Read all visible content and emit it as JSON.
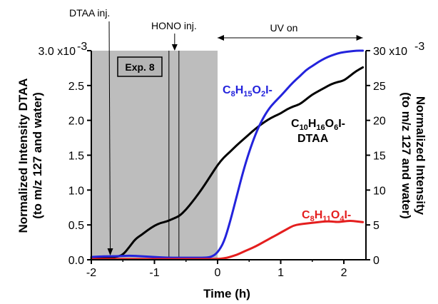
{
  "chart_data": {
    "type": "line",
    "title": "",
    "xlabel": "Time (h)",
    "xlim": [
      -2,
      2.35
    ],
    "x_ticks": [
      "-2",
      "-1",
      "0",
      "1",
      "2"
    ],
    "ylabel_left_line1": "Normalized Intensity DTAA",
    "ylabel_left_line2": "(to m/z 127 and water)",
    "ylim_left": [
      0,
      0.003
    ],
    "y_ticks_left": [
      "0.0",
      "0.5",
      "1.0",
      "1.5",
      "2.0",
      "2.5",
      "3.0 x10"
    ],
    "y_ticks_left_exponent": "-3",
    "ylabel_right_line1": "Normalized Intensity",
    "ylabel_right_line2": "(to m/z 127 and water)",
    "ylim_right": [
      0,
      30
    ],
    "y_ticks_right": [
      "0",
      "5",
      "10",
      "15",
      "20",
      "25",
      "30 x10"
    ],
    "y_ticks_right_exponent": "-3",
    "shaded_region": [
      -2,
      0
    ],
    "box_label": "Exp. 8",
    "annotations": {
      "dtaa_inj": {
        "text": "DTAA inj.",
        "x": -1.7
      },
      "hono_inj": {
        "text": "HONO inj.",
        "x": -0.68
      },
      "uv_on": {
        "text": "UV on",
        "x_start": 0,
        "x_end": 2.3
      }
    },
    "series": [
      {
        "name": "C10H16O6I- DTAA",
        "label_main": "C",
        "label_sub1": "10",
        "label_h": "H",
        "label_sub2": "16",
        "label_o": "O",
        "label_sub3": "6",
        "label_end": "I-",
        "label_line2": "DTAA",
        "axis": "left",
        "color": "#000000",
        "x": [
          -2.0,
          -1.8,
          -1.6,
          -1.5,
          -1.4,
          -1.3,
          -1.2,
          -1.1,
          -1.0,
          -0.9,
          -0.8,
          -0.7,
          -0.6,
          -0.5,
          -0.4,
          -0.3,
          -0.2,
          -0.1,
          0.0,
          0.1,
          0.2,
          0.3,
          0.4,
          0.5,
          0.6,
          0.7,
          0.8,
          0.9,
          1.0,
          1.1,
          1.2,
          1.3,
          1.4,
          1.5,
          1.6,
          1.7,
          1.8,
          1.9,
          2.0,
          2.1,
          2.2,
          2.3
        ],
        "values": [
          2e-05,
          3e-05,
          4e-05,
          7e-05,
          0.00018,
          0.0003,
          0.00036,
          0.00043,
          0.00049,
          0.00053,
          0.00055,
          0.00059,
          0.00063,
          0.00072,
          0.00083,
          0.00095,
          0.00108,
          0.00122,
          0.00136,
          0.00147,
          0.00155,
          0.00164,
          0.00172,
          0.0018,
          0.00188,
          0.00195,
          0.00201,
          0.00206,
          0.0021,
          0.00216,
          0.0022,
          0.00223,
          0.0023,
          0.00237,
          0.00242,
          0.00247,
          0.00252,
          0.00255,
          0.00257,
          0.00264,
          0.00271,
          0.00276
        ]
      },
      {
        "name": "C8H15O2I-",
        "label_main": "C",
        "label_sub1": "8",
        "label_h": "H",
        "label_sub2": "15",
        "label_o": "O",
        "label_sub3": "2",
        "label_end": "I-",
        "axis": "right",
        "color": "#2323dc",
        "x": [
          -2.0,
          -1.8,
          -1.6,
          -1.4,
          -1.2,
          -1.0,
          -0.8,
          -0.6,
          -0.4,
          -0.2,
          -0.1,
          0.0,
          0.1,
          0.2,
          0.3,
          0.4,
          0.5,
          0.6,
          0.7,
          0.8,
          0.9,
          1.0,
          1.1,
          1.2,
          1.3,
          1.4,
          1.5,
          1.6,
          1.7,
          1.8,
          1.9,
          2.0,
          2.1,
          2.2,
          2.3
        ],
        "values": [
          0.4,
          0.5,
          0.5,
          0.6,
          0.5,
          0.4,
          0.3,
          0.3,
          0.3,
          0.3,
          0.4,
          1.0,
          2.5,
          5.5,
          9.0,
          12.5,
          15.5,
          18.0,
          20.0,
          21.5,
          22.6,
          23.5,
          24.5,
          25.5,
          26.3,
          27.2,
          27.8,
          28.4,
          28.9,
          29.3,
          29.6,
          29.8,
          29.9,
          30.0,
          30.0
        ]
      },
      {
        "name": "C8H11O4I-",
        "label_main": "C",
        "label_sub1": "8",
        "label_h": "H",
        "label_sub2": "11",
        "label_o": "O",
        "label_sub3": "4",
        "label_end": "I-",
        "axis": "right",
        "color": "#e41e1e",
        "x": [
          -2.0,
          -1.5,
          -1.0,
          -0.5,
          0.0,
          0.1,
          0.2,
          0.3,
          0.4,
          0.5,
          0.6,
          0.7,
          0.8,
          0.9,
          1.0,
          1.1,
          1.2,
          1.3,
          1.4,
          1.5,
          1.6,
          1.7,
          1.8,
          1.9,
          2.0,
          2.1,
          2.2,
          2.3
        ],
        "values": [
          0.1,
          0.1,
          0.1,
          0.1,
          0.1,
          0.2,
          0.4,
          0.7,
          1.1,
          1.5,
          1.9,
          2.4,
          2.9,
          3.4,
          3.9,
          4.4,
          4.9,
          5.1,
          5.2,
          5.3,
          5.4,
          5.5,
          5.5,
          5.4,
          5.5,
          5.6,
          5.5,
          5.4
        ]
      }
    ]
  }
}
